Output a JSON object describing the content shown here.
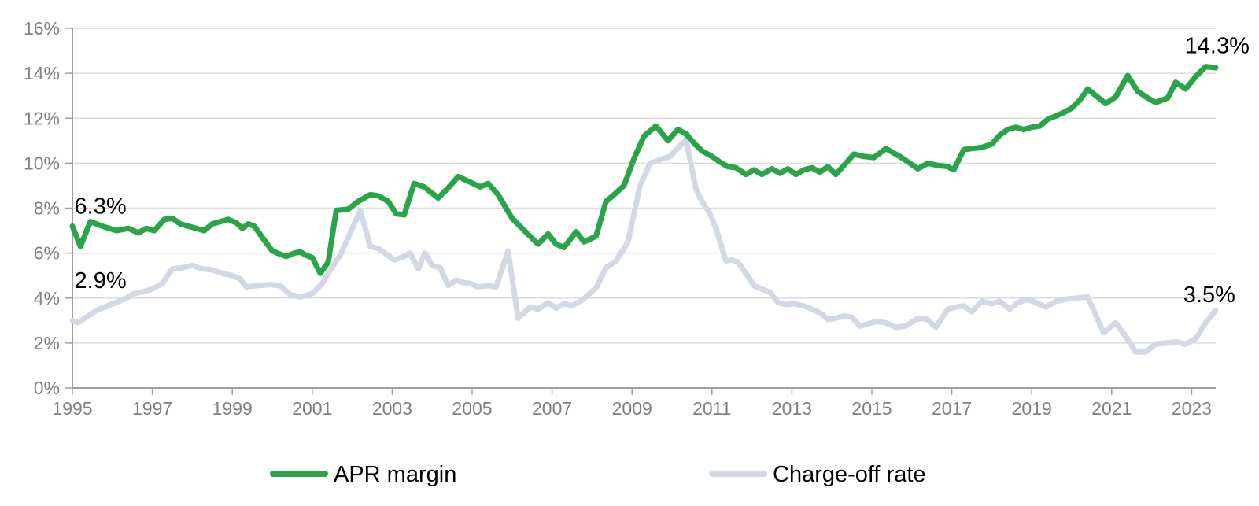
{
  "chart_data": {
    "type": "line",
    "title": "",
    "grid": true,
    "legend_position": "bottom",
    "x_axis": {
      "range": [
        1995,
        2023.6
      ],
      "ticks": [
        1995,
        1997,
        1999,
        2001,
        2003,
        2005,
        2007,
        2009,
        2011,
        2013,
        2015,
        2017,
        2019,
        2021,
        2023
      ],
      "tick_labels": [
        "1995",
        "1997",
        "1999",
        "2001",
        "2003",
        "2005",
        "2007",
        "2009",
        "2011",
        "2013",
        "2015",
        "2017",
        "2019",
        "2021",
        "2023"
      ]
    },
    "y_axis": {
      "range": [
        0,
        16
      ],
      "ticks": [
        0,
        2,
        4,
        6,
        8,
        10,
        12,
        14,
        16
      ],
      "tick_labels": [
        "0%",
        "2%",
        "4%",
        "6%",
        "8%",
        "10%",
        "12%",
        "14%",
        "16%"
      ]
    },
    "colors": {
      "apr_margin": "#29A449",
      "charge_off": "#D3D9E4",
      "gridline": "#DCDCDC",
      "axis": "#9E9E9E",
      "axis_text": "#7F8084",
      "annotation_text": "#000000"
    },
    "series": [
      {
        "name": "APR margin",
        "color_key": "apr_margin",
        "points": [
          [
            1995.0,
            7.2
          ],
          [
            1995.2,
            6.3
          ],
          [
            1995.45,
            7.4
          ],
          [
            1995.75,
            7.2
          ],
          [
            1996.1,
            7.0
          ],
          [
            1996.4,
            7.1
          ],
          [
            1996.65,
            6.9
          ],
          [
            1996.85,
            7.1
          ],
          [
            1997.05,
            7.0
          ],
          [
            1997.3,
            7.5
          ],
          [
            1997.5,
            7.55
          ],
          [
            1997.7,
            7.3
          ],
          [
            1997.9,
            7.2
          ],
          [
            1998.1,
            7.1
          ],
          [
            1998.3,
            7.0
          ],
          [
            1998.5,
            7.3
          ],
          [
            1998.7,
            7.4
          ],
          [
            1998.9,
            7.5
          ],
          [
            1999.1,
            7.35
          ],
          [
            1999.25,
            7.1
          ],
          [
            1999.4,
            7.3
          ],
          [
            1999.55,
            7.2
          ],
          [
            1999.75,
            6.7
          ],
          [
            2000.0,
            6.1
          ],
          [
            2000.2,
            5.95
          ],
          [
            2000.35,
            5.85
          ],
          [
            2000.55,
            6.0
          ],
          [
            2000.7,
            6.05
          ],
          [
            2000.85,
            5.9
          ],
          [
            2001.0,
            5.8
          ],
          [
            2001.2,
            5.1
          ],
          [
            2001.4,
            5.6
          ],
          [
            2001.6,
            7.9
          ],
          [
            2001.9,
            7.95
          ],
          [
            2002.15,
            8.3
          ],
          [
            2002.45,
            8.6
          ],
          [
            2002.65,
            8.55
          ],
          [
            2002.9,
            8.3
          ],
          [
            2003.1,
            7.75
          ],
          [
            2003.3,
            7.7
          ],
          [
            2003.55,
            9.1
          ],
          [
            2003.8,
            8.95
          ],
          [
            2004.15,
            8.45
          ],
          [
            2004.4,
            8.9
          ],
          [
            2004.65,
            9.4
          ],
          [
            2004.9,
            9.2
          ],
          [
            2005.2,
            8.95
          ],
          [
            2005.4,
            9.1
          ],
          [
            2005.65,
            8.6
          ],
          [
            2006.0,
            7.55
          ],
          [
            2006.25,
            7.1
          ],
          [
            2006.65,
            6.4
          ],
          [
            2006.9,
            6.85
          ],
          [
            2007.1,
            6.4
          ],
          [
            2007.3,
            6.25
          ],
          [
            2007.6,
            6.95
          ],
          [
            2007.8,
            6.5
          ],
          [
            2008.1,
            6.75
          ],
          [
            2008.35,
            8.3
          ],
          [
            2008.55,
            8.6
          ],
          [
            2008.8,
            9.0
          ],
          [
            2009.05,
            10.2
          ],
          [
            2009.3,
            11.2
          ],
          [
            2009.6,
            11.65
          ],
          [
            2009.9,
            11.0
          ],
          [
            2010.15,
            11.5
          ],
          [
            2010.35,
            11.3
          ],
          [
            2010.55,
            10.9
          ],
          [
            2010.75,
            10.55
          ],
          [
            2011.0,
            10.3
          ],
          [
            2011.2,
            10.05
          ],
          [
            2011.4,
            9.85
          ],
          [
            2011.6,
            9.8
          ],
          [
            2011.85,
            9.5
          ],
          [
            2012.05,
            9.7
          ],
          [
            2012.25,
            9.5
          ],
          [
            2012.5,
            9.75
          ],
          [
            2012.7,
            9.55
          ],
          [
            2012.9,
            9.75
          ],
          [
            2013.1,
            9.5
          ],
          [
            2013.3,
            9.7
          ],
          [
            2013.5,
            9.8
          ],
          [
            2013.7,
            9.6
          ],
          [
            2013.9,
            9.85
          ],
          [
            2014.1,
            9.5
          ],
          [
            2014.55,
            10.4
          ],
          [
            2014.8,
            10.3
          ],
          [
            2015.05,
            10.25
          ],
          [
            2015.35,
            10.65
          ],
          [
            2015.7,
            10.3
          ],
          [
            2015.95,
            10.0
          ],
          [
            2016.15,
            9.75
          ],
          [
            2016.4,
            10.0
          ],
          [
            2016.65,
            9.9
          ],
          [
            2016.9,
            9.85
          ],
          [
            2017.05,
            9.7
          ],
          [
            2017.3,
            10.6
          ],
          [
            2017.5,
            10.65
          ],
          [
            2017.75,
            10.7
          ],
          [
            2018.0,
            10.85
          ],
          [
            2018.2,
            11.25
          ],
          [
            2018.4,
            11.5
          ],
          [
            2018.6,
            11.6
          ],
          [
            2018.8,
            11.5
          ],
          [
            2019.0,
            11.6
          ],
          [
            2019.2,
            11.65
          ],
          [
            2019.4,
            11.95
          ],
          [
            2019.6,
            12.1
          ],
          [
            2019.8,
            12.25
          ],
          [
            2020.0,
            12.45
          ],
          [
            2020.2,
            12.8
          ],
          [
            2020.4,
            13.3
          ],
          [
            2020.85,
            12.65
          ],
          [
            2021.1,
            12.95
          ],
          [
            2021.4,
            13.9
          ],
          [
            2021.65,
            13.2
          ],
          [
            2021.9,
            12.9
          ],
          [
            2022.1,
            12.7
          ],
          [
            2022.4,
            12.9
          ],
          [
            2022.6,
            13.6
          ],
          [
            2022.85,
            13.3
          ],
          [
            2023.1,
            13.85
          ],
          [
            2023.35,
            14.3
          ],
          [
            2023.6,
            14.25
          ]
        ]
      },
      {
        "name": "Charge-off rate",
        "color_key": "charge_off",
        "points": [
          [
            1995.0,
            3.0
          ],
          [
            1995.15,
            2.9
          ],
          [
            1995.35,
            3.15
          ],
          [
            1995.6,
            3.45
          ],
          [
            1995.95,
            3.7
          ],
          [
            1996.3,
            3.95
          ],
          [
            1996.55,
            4.2
          ],
          [
            1996.8,
            4.3
          ],
          [
            1997.0,
            4.4
          ],
          [
            1997.25,
            4.65
          ],
          [
            1997.5,
            5.3
          ],
          [
            1997.75,
            5.35
          ],
          [
            1998.0,
            5.45
          ],
          [
            1998.25,
            5.3
          ],
          [
            1998.5,
            5.25
          ],
          [
            1998.75,
            5.1
          ],
          [
            1999.0,
            5.0
          ],
          [
            1999.2,
            4.85
          ],
          [
            1999.35,
            4.5
          ],
          [
            1999.6,
            4.55
          ],
          [
            1999.95,
            4.6
          ],
          [
            2000.2,
            4.55
          ],
          [
            2000.45,
            4.15
          ],
          [
            2000.7,
            4.05
          ],
          [
            2001.0,
            4.2
          ],
          [
            2001.25,
            4.65
          ],
          [
            2001.5,
            5.4
          ],
          [
            2001.7,
            5.9
          ],
          [
            2001.95,
            6.9
          ],
          [
            2002.2,
            7.9
          ],
          [
            2002.45,
            6.3
          ],
          [
            2002.65,
            6.2
          ],
          [
            2002.9,
            5.9
          ],
          [
            2003.05,
            5.7
          ],
          [
            2003.3,
            5.85
          ],
          [
            2003.45,
            6.0
          ],
          [
            2003.65,
            5.3
          ],
          [
            2003.82,
            6.0
          ],
          [
            2004.0,
            5.45
          ],
          [
            2004.2,
            5.35
          ],
          [
            2004.4,
            4.55
          ],
          [
            2004.6,
            4.8
          ],
          [
            2004.75,
            4.7
          ],
          [
            2004.95,
            4.65
          ],
          [
            2005.15,
            4.5
          ],
          [
            2005.4,
            4.55
          ],
          [
            2005.6,
            4.5
          ],
          [
            2005.9,
            6.1
          ],
          [
            2006.15,
            3.1
          ],
          [
            2006.45,
            3.6
          ],
          [
            2006.65,
            3.5
          ],
          [
            2006.9,
            3.8
          ],
          [
            2007.1,
            3.55
          ],
          [
            2007.3,
            3.75
          ],
          [
            2007.5,
            3.65
          ],
          [
            2007.75,
            3.9
          ],
          [
            2008.1,
            4.45
          ],
          [
            2008.35,
            5.35
          ],
          [
            2008.6,
            5.65
          ],
          [
            2008.9,
            6.5
          ],
          [
            2009.2,
            9.0
          ],
          [
            2009.45,
            10.0
          ],
          [
            2009.7,
            10.15
          ],
          [
            2009.95,
            10.3
          ],
          [
            2010.35,
            11.05
          ],
          [
            2010.6,
            8.85
          ],
          [
            2010.75,
            8.3
          ],
          [
            2010.95,
            7.75
          ],
          [
            2011.1,
            7.1
          ],
          [
            2011.35,
            5.65
          ],
          [
            2011.5,
            5.7
          ],
          [
            2011.65,
            5.6
          ],
          [
            2011.85,
            5.1
          ],
          [
            2012.05,
            4.55
          ],
          [
            2012.25,
            4.4
          ],
          [
            2012.45,
            4.25
          ],
          [
            2012.65,
            3.8
          ],
          [
            2012.85,
            3.7
          ],
          [
            2013.05,
            3.75
          ],
          [
            2013.3,
            3.65
          ],
          [
            2013.5,
            3.5
          ],
          [
            2013.7,
            3.35
          ],
          [
            2013.9,
            3.05
          ],
          [
            2014.1,
            3.1
          ],
          [
            2014.3,
            3.2
          ],
          [
            2014.5,
            3.15
          ],
          [
            2014.7,
            2.75
          ],
          [
            2014.9,
            2.85
          ],
          [
            2015.1,
            2.95
          ],
          [
            2015.35,
            2.9
          ],
          [
            2015.6,
            2.7
          ],
          [
            2015.85,
            2.75
          ],
          [
            2016.1,
            3.05
          ],
          [
            2016.35,
            3.1
          ],
          [
            2016.6,
            2.7
          ],
          [
            2016.9,
            3.5
          ],
          [
            2017.1,
            3.6
          ],
          [
            2017.3,
            3.65
          ],
          [
            2017.5,
            3.4
          ],
          [
            2017.75,
            3.85
          ],
          [
            2018.0,
            3.75
          ],
          [
            2018.2,
            3.85
          ],
          [
            2018.45,
            3.5
          ],
          [
            2018.65,
            3.8
          ],
          [
            2018.9,
            3.95
          ],
          [
            2019.1,
            3.8
          ],
          [
            2019.35,
            3.6
          ],
          [
            2019.6,
            3.85
          ],
          [
            2019.85,
            3.95
          ],
          [
            2020.1,
            4.0
          ],
          [
            2020.4,
            4.05
          ],
          [
            2020.8,
            2.45
          ],
          [
            2021.1,
            2.9
          ],
          [
            2021.35,
            2.3
          ],
          [
            2021.6,
            1.6
          ],
          [
            2021.85,
            1.6
          ],
          [
            2022.1,
            1.95
          ],
          [
            2022.35,
            2.0
          ],
          [
            2022.6,
            2.05
          ],
          [
            2022.85,
            1.95
          ],
          [
            2023.1,
            2.2
          ],
          [
            2023.35,
            2.9
          ],
          [
            2023.6,
            3.45
          ]
        ]
      }
    ],
    "annotations": [
      {
        "text": "6.3%",
        "year": 1995.05,
        "value": 7.75,
        "anchor": "start",
        "dx": 0
      },
      {
        "text": "2.9%",
        "year": 1995.05,
        "value": 4.45,
        "anchor": "start",
        "dx": 0
      },
      {
        "text": "14.3%",
        "year": 2023.6,
        "value": 14.9,
        "anchor": "end",
        "dx": 43
      },
      {
        "text": "3.5%",
        "year": 2023.6,
        "value": 3.82,
        "anchor": "end",
        "dx": 25
      }
    ],
    "legend": [
      {
        "label": "APR margin",
        "color_key": "apr_margin"
      },
      {
        "label": "Charge-off rate",
        "color_key": "charge_off"
      }
    ]
  }
}
